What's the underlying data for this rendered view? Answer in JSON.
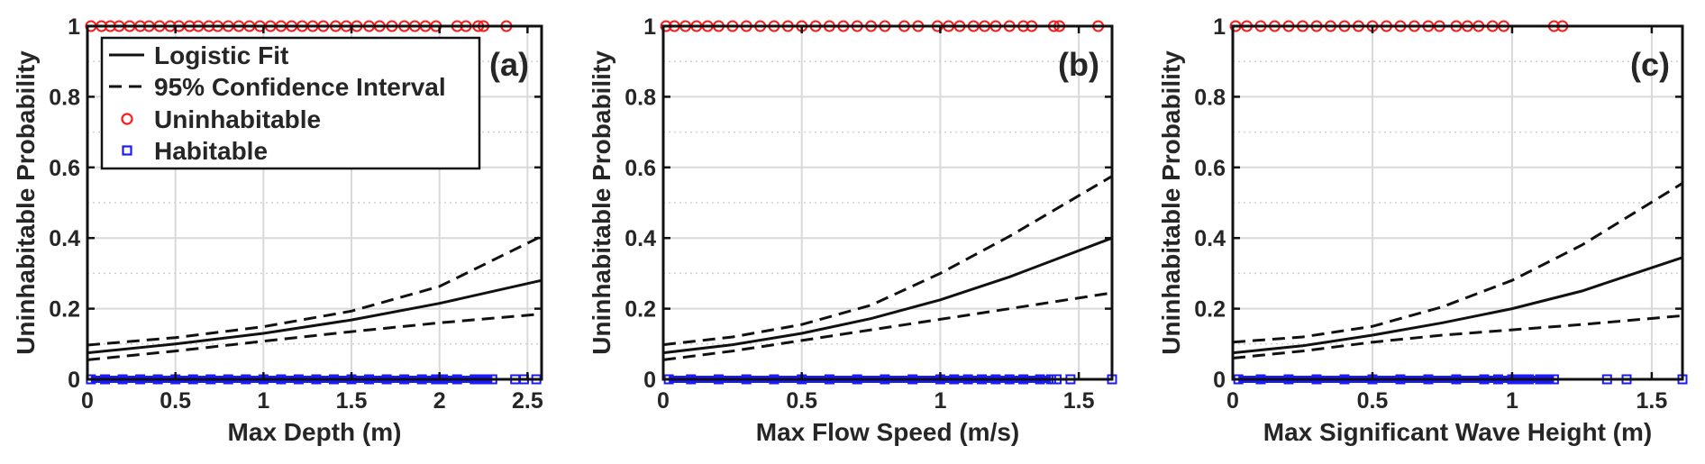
{
  "chart_data": [
    {
      "type": "line",
      "panel_label": "(a)",
      "xlabel": "Max Depth (m)",
      "ylabel": "Uninhabitable Probability",
      "xlim": [
        0,
        2.58
      ],
      "ylim": [
        0,
        1
      ],
      "xticks": [
        "0",
        "0.5",
        "1",
        "1.5",
        "2",
        "2.5"
      ],
      "xtick_values": [
        0,
        0.5,
        1,
        1.5,
        2,
        2.5
      ],
      "yticks": [
        "0",
        "0.2",
        "0.4",
        "0.6",
        "0.8",
        "1"
      ],
      "ytick_values": [
        0,
        0.2,
        0.4,
        0.6,
        0.8,
        1
      ],
      "grid": true,
      "legend": {
        "position": "top-left",
        "entries": [
          "Logistic Fit",
          "95% Confidence Interval",
          "Uninhabitable",
          "Habitable"
        ]
      },
      "x": [
        0,
        0.5,
        1,
        1.5,
        2,
        2.58
      ],
      "series": [
        {
          "name": "Logistic Fit",
          "style": "solid",
          "values": [
            0.075,
            0.1,
            0.13,
            0.168,
            0.215,
            0.28
          ]
        },
        {
          "name": "95% Confidence Interval",
          "style": "dashed",
          "values": [
            0.097,
            0.118,
            0.149,
            0.193,
            0.263,
            0.405
          ]
        },
        {
          "name": "95% Confidence Interval",
          "style": "dashed",
          "values": [
            0.055,
            0.08,
            0.108,
            0.135,
            0.16,
            0.185
          ]
        }
      ],
      "uninhabitable_x": [
        0.02,
        0.08,
        0.13,
        0.18,
        0.24,
        0.3,
        0.35,
        0.41,
        0.47,
        0.52,
        0.58,
        0.63,
        0.69,
        0.74,
        0.8,
        0.86,
        0.92,
        0.98,
        1.04,
        1.1,
        1.16,
        1.22,
        1.28,
        1.34,
        1.41,
        1.47,
        1.53,
        1.6,
        1.66,
        1.73,
        1.8,
        1.86,
        1.92,
        1.98,
        2.1,
        2.15,
        2.22,
        2.25,
        2.38
      ],
      "habitable_x": [
        0.02,
        0.1,
        0.2,
        0.3,
        0.4,
        0.5,
        0.6,
        0.7,
        0.8,
        0.9,
        1.0,
        1.1,
        1.2,
        1.3,
        1.4,
        1.5,
        1.6,
        1.7,
        1.8,
        1.9,
        1.98,
        2.02,
        2.1,
        2.2,
        2.25,
        2.3,
        2.43,
        2.48,
        2.55
      ]
    },
    {
      "type": "line",
      "panel_label": "(b)",
      "xlabel": "Max Flow Speed (m/s)",
      "ylabel": "Uninhabitable Probability",
      "xlim": [
        0,
        1.62
      ],
      "ylim": [
        0,
        1
      ],
      "xticks": [
        "0",
        "0.5",
        "1",
        "1.5"
      ],
      "xtick_values": [
        0,
        0.5,
        1,
        1.5
      ],
      "yticks": [
        "0",
        "0.2",
        "0.4",
        "0.6",
        "0.8",
        "1"
      ],
      "ytick_values": [
        0,
        0.2,
        0.4,
        0.6,
        0.8,
        1
      ],
      "grid": true,
      "x": [
        0,
        0.25,
        0.5,
        0.75,
        1.0,
        1.25,
        1.62
      ],
      "series": [
        {
          "name": "Logistic Fit",
          "style": "solid",
          "values": [
            0.075,
            0.098,
            0.13,
            0.172,
            0.225,
            0.29,
            0.4
          ]
        },
        {
          "name": "95% Confidence Interval",
          "style": "dashed",
          "values": [
            0.098,
            0.12,
            0.155,
            0.21,
            0.3,
            0.405,
            0.575
          ]
        },
        {
          "name": "95% Confidence Interval",
          "style": "dashed",
          "values": [
            0.055,
            0.08,
            0.11,
            0.14,
            0.17,
            0.2,
            0.245
          ]
        }
      ],
      "uninhabitable_x": [
        0.01,
        0.04,
        0.08,
        0.12,
        0.16,
        0.2,
        0.25,
        0.3,
        0.35,
        0.4,
        0.45,
        0.5,
        0.55,
        0.6,
        0.65,
        0.7,
        0.75,
        0.8,
        0.87,
        0.92,
        0.99,
        1.03,
        1.07,
        1.12,
        1.16,
        1.2,
        1.25,
        1.3,
        1.33,
        1.41,
        1.43,
        1.57
      ],
      "habitable_x": [
        0.02,
        0.1,
        0.2,
        0.3,
        0.4,
        0.5,
        0.6,
        0.7,
        0.8,
        0.9,
        1.0,
        1.05,
        1.1,
        1.15,
        1.2,
        1.25,
        1.3,
        1.36,
        1.4,
        1.42,
        1.47,
        1.62
      ]
    },
    {
      "type": "line",
      "panel_label": "(c)",
      "xlabel": "Max Significant Wave Height (m)",
      "ylabel": "Uninhabitable Probability",
      "xlim": [
        0,
        1.61
      ],
      "ylim": [
        0,
        1
      ],
      "xticks": [
        "0",
        "0.5",
        "1",
        "1.5"
      ],
      "xtick_values": [
        0,
        0.5,
        1,
        1.5
      ],
      "yticks": [
        "0",
        "0.2",
        "0.4",
        "0.6",
        "0.8",
        "1"
      ],
      "ytick_values": [
        0,
        0.2,
        0.4,
        0.6,
        0.8,
        1
      ],
      "grid": true,
      "x": [
        0,
        0.25,
        0.5,
        0.75,
        1.0,
        1.25,
        1.61
      ],
      "series": [
        {
          "name": "Logistic Fit",
          "style": "solid",
          "values": [
            0.075,
            0.095,
            0.125,
            0.16,
            0.2,
            0.25,
            0.345
          ]
        },
        {
          "name": "95% Confidence Interval",
          "style": "dashed",
          "values": [
            0.105,
            0.12,
            0.15,
            0.205,
            0.28,
            0.38,
            0.555
          ]
        },
        {
          "name": "95% Confidence Interval",
          "style": "dashed",
          "values": [
            0.06,
            0.08,
            0.105,
            0.125,
            0.14,
            0.155,
            0.18
          ]
        }
      ],
      "uninhabitable_x": [
        0.01,
        0.05,
        0.1,
        0.15,
        0.2,
        0.25,
        0.3,
        0.35,
        0.4,
        0.45,
        0.5,
        0.55,
        0.6,
        0.65,
        0.7,
        0.74,
        0.8,
        0.84,
        0.88,
        0.93,
        0.97,
        1.15,
        1.18
      ],
      "habitable_x": [
        0.02,
        0.1,
        0.2,
        0.3,
        0.4,
        0.5,
        0.6,
        0.7,
        0.8,
        0.9,
        0.95,
        1.0,
        1.03,
        1.06,
        1.1,
        1.12,
        1.15,
        1.34,
        1.41,
        1.61
      ]
    }
  ]
}
